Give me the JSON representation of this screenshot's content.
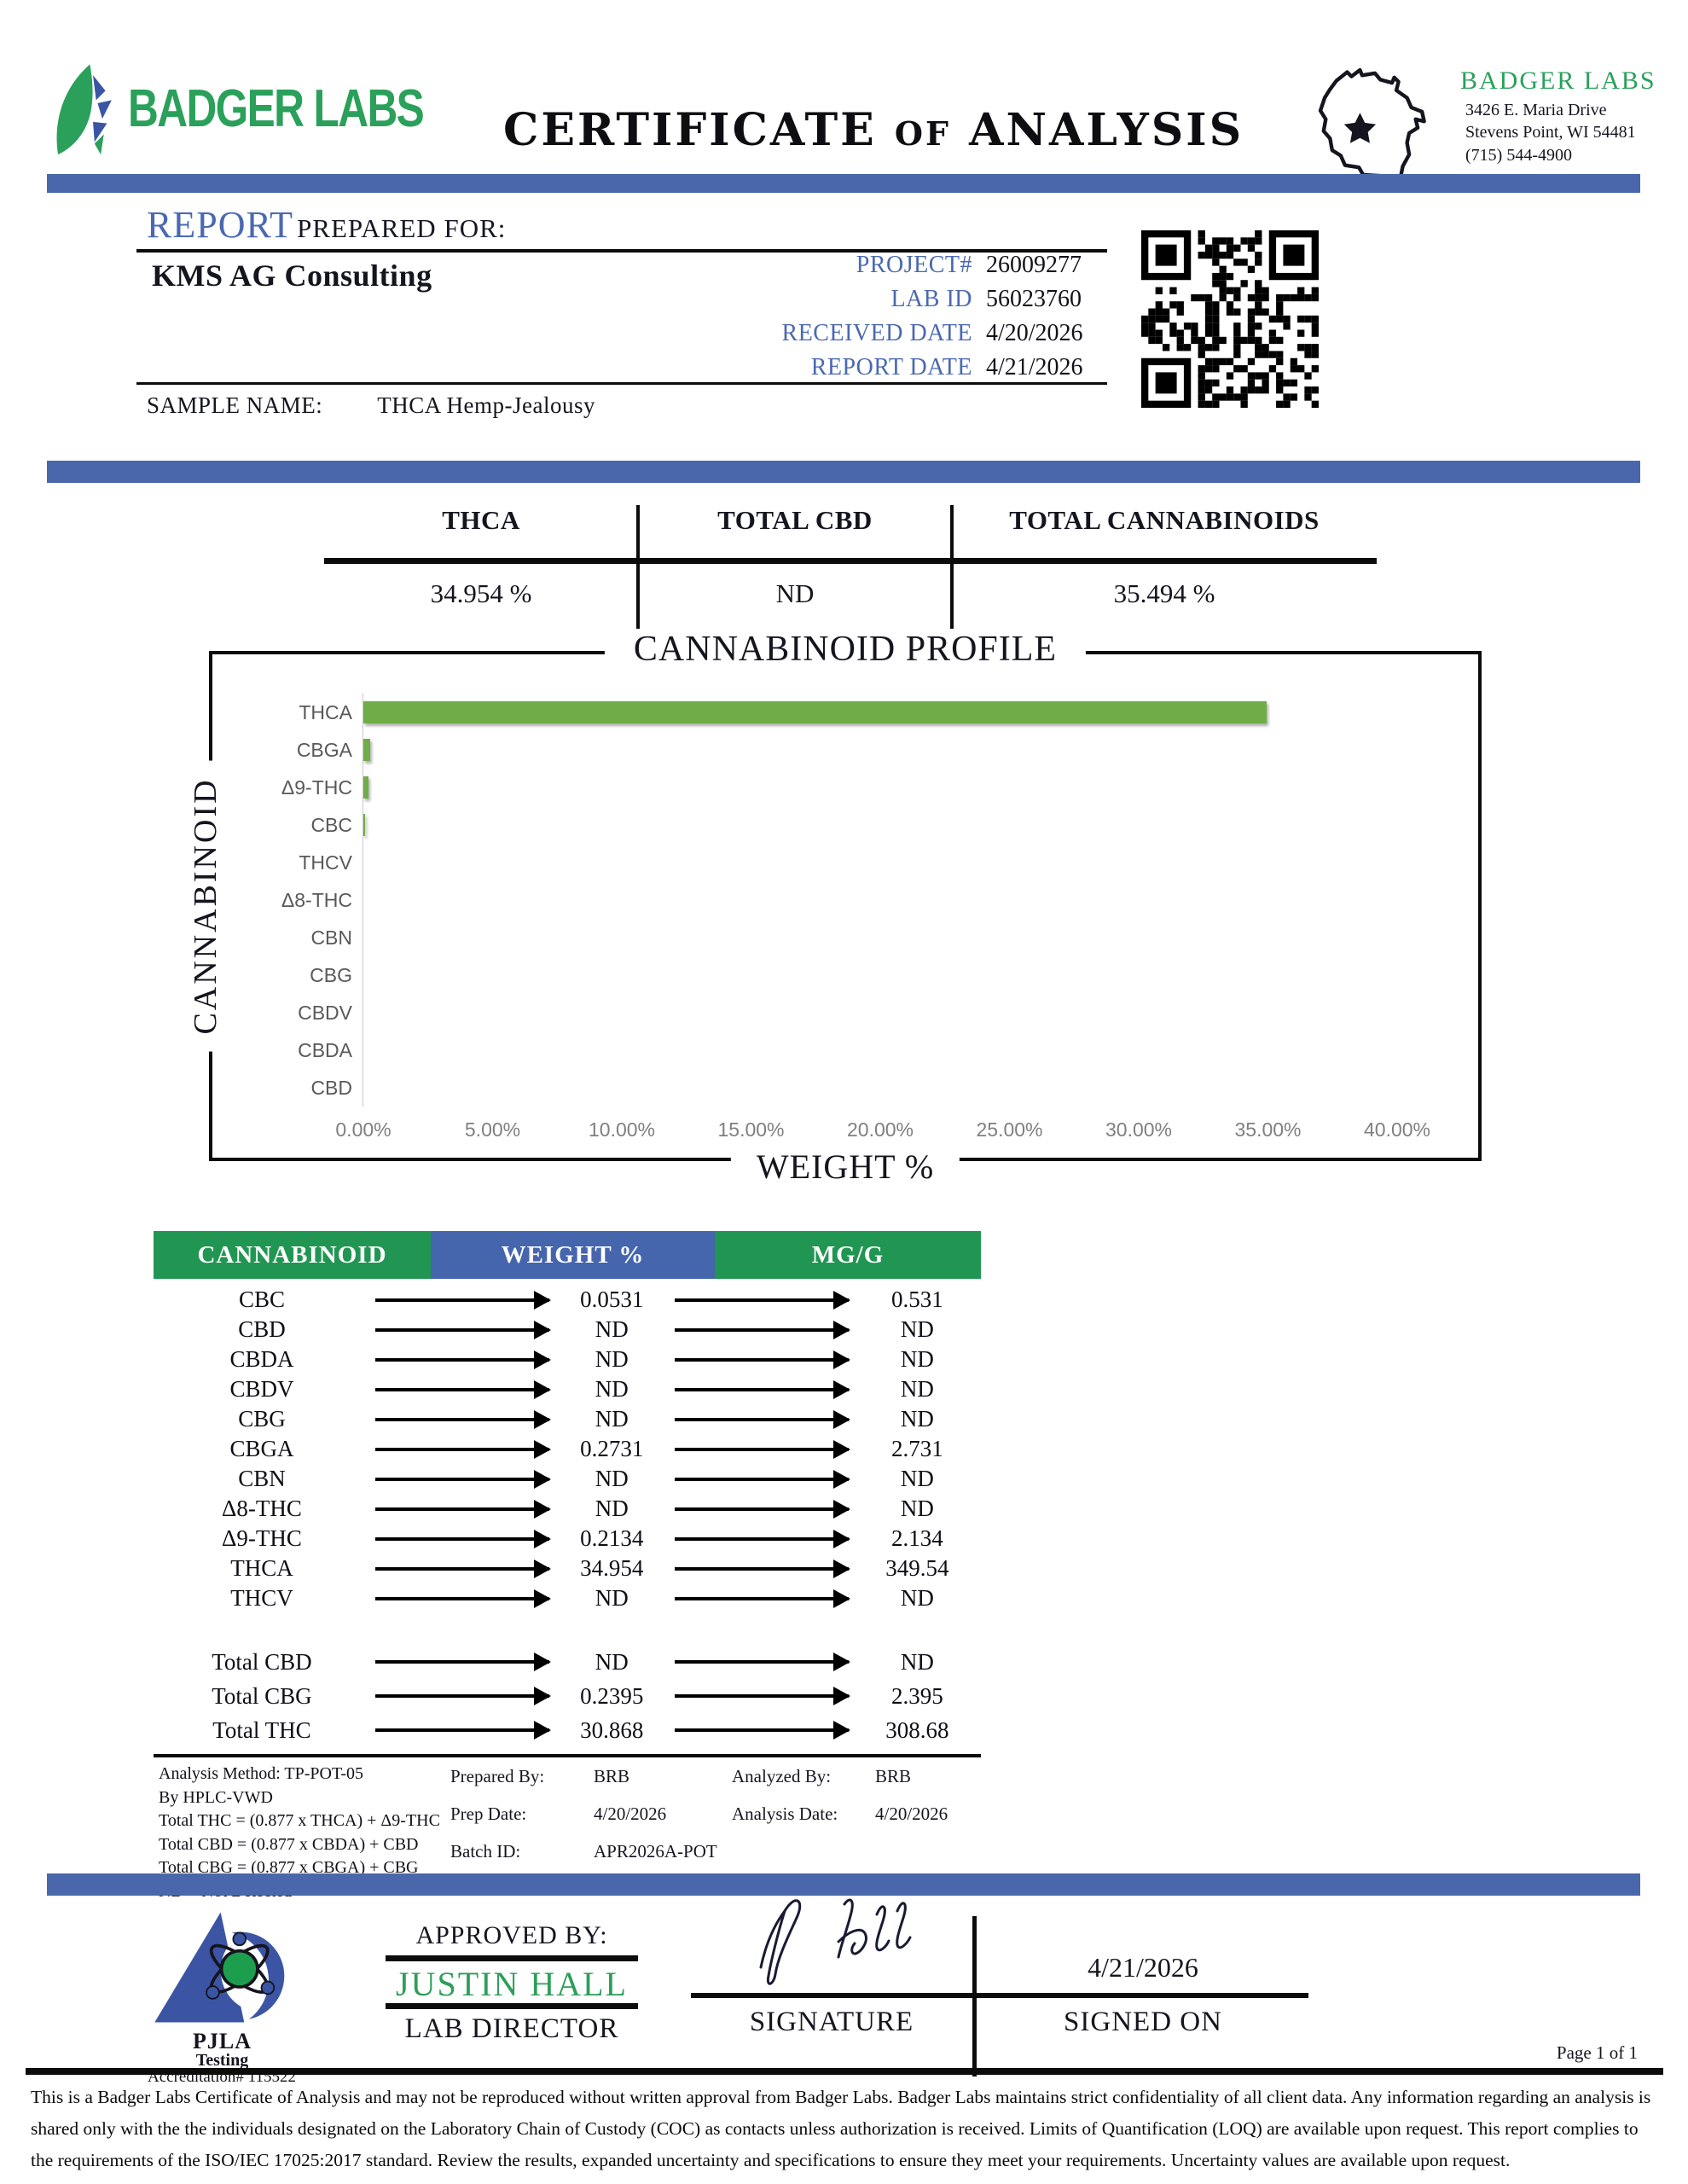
{
  "colors": {
    "accent_blue": "#4a67ab",
    "accent_green": "#2aa05a",
    "table_header_green": "#219653",
    "table_header_blue": "#4565ad",
    "bar_green": "#6fad47"
  },
  "header": {
    "brand": "BADGER LABS",
    "title_certificate": "CERTIFICATE",
    "title_of": "OF",
    "title_analysis": "ANALYSIS",
    "lab_name": "BADGER LABS",
    "address_line1": "3426 E. Maria Drive",
    "address_line2": "Stevens Point, WI 54481",
    "phone": "(715) 544-4900"
  },
  "report": {
    "heading_report": "REPORT",
    "heading_prepared": "PREPARED FOR:",
    "client": "KMS AG Consulting",
    "meta": [
      {
        "label": "PROJECT#",
        "value": "26009277"
      },
      {
        "label": "LAB ID",
        "value": "56023760"
      },
      {
        "label": "RECEIVED DATE",
        "value": "4/20/2026"
      },
      {
        "label": "REPORT DATE",
        "value": "4/21/2026"
      }
    ],
    "sample_name_label": "SAMPLE NAME:",
    "sample_name": "THCA Hemp-Jealousy"
  },
  "summary": {
    "columns": [
      {
        "label": "THCA",
        "value": "34.954 %"
      },
      {
        "label": "TOTAL CBD",
        "value": "ND"
      },
      {
        "label": "TOTAL CANNABINOIDS",
        "value": "35.494 %"
      }
    ]
  },
  "chart_data": {
    "type": "bar",
    "orientation": "horizontal",
    "title": "CANNABINOID PROFILE",
    "xlabel": "WEIGHT %",
    "ylabel": "CANNABINOID",
    "categories": [
      "THCA",
      "CBGA",
      "Δ9-THC",
      "CBC",
      "THCV",
      "Δ8-THC",
      "CBN",
      "CBG",
      "CBDV",
      "CBDA",
      "CBD"
    ],
    "values": [
      34.954,
      0.2731,
      0.2134,
      0.0531,
      0,
      0,
      0,
      0,
      0,
      0,
      0
    ],
    "xlim": [
      0,
      40
    ],
    "x_ticks": [
      "0.00%",
      "5.00%",
      "10.00%",
      "15.00%",
      "20.00%",
      "25.00%",
      "30.00%",
      "35.00%",
      "40.00%"
    ],
    "grid": false,
    "legend": "none",
    "bar_color": "#6fad47"
  },
  "table": {
    "headers": [
      "CANNABINOID",
      "WEIGHT %",
      "MG/G"
    ],
    "rows": [
      {
        "name": "CBC",
        "weight": "0.0531",
        "mgg": "0.531"
      },
      {
        "name": "CBD",
        "weight": "ND",
        "mgg": "ND"
      },
      {
        "name": "CBDA",
        "weight": "ND",
        "mgg": "ND"
      },
      {
        "name": "CBDV",
        "weight": "ND",
        "mgg": "ND"
      },
      {
        "name": "CBG",
        "weight": "ND",
        "mgg": "ND"
      },
      {
        "name": "CBGA",
        "weight": "0.2731",
        "mgg": "2.731"
      },
      {
        "name": "CBN",
        "weight": "ND",
        "mgg": "ND"
      },
      {
        "name": "Δ8-THC",
        "weight": "ND",
        "mgg": "ND"
      },
      {
        "name": "Δ9-THC",
        "weight": "0.2134",
        "mgg": "2.134"
      },
      {
        "name": "THCA",
        "weight": "34.954",
        "mgg": "349.54"
      },
      {
        "name": "THCV",
        "weight": "ND",
        "mgg": "ND"
      }
    ],
    "totals": [
      {
        "name": "Total CBD",
        "weight": "ND",
        "mgg": "ND"
      },
      {
        "name": "Total CBG",
        "weight": "0.2395",
        "mgg": "2.395"
      },
      {
        "name": "Total THC",
        "weight": "30.868",
        "mgg": "308.68"
      }
    ]
  },
  "analysis": {
    "left_lines": [
      "Analysis Method: TP-POT-05",
      "By HPLC-VWD",
      "Total THC = (0.877 x  THCA) + Δ9-THC",
      "Total CBD = (0.877 x  CBDA) + CBD",
      "Total CBG = (0.877 x  CBGA) + CBG",
      "ND = Not Detected"
    ],
    "prepared": [
      {
        "label": "Prepared By:",
        "value": "BRB"
      },
      {
        "label": "Prep Date:",
        "value": "4/20/2026"
      },
      {
        "label": "Batch ID:",
        "value": "APR2026A-POT"
      }
    ],
    "analyzed": [
      {
        "label": "Analyzed By:",
        "value": "BRB"
      },
      {
        "label": "Analysis Date:",
        "value": "4/20/2026"
      }
    ]
  },
  "approval": {
    "approved_by_label": "APPROVED BY:",
    "approver": "JUSTIN HALL",
    "approver_title": "LAB DIRECTOR",
    "signature_label": "SIGNATURE",
    "signed_on_date": "4/21/2026",
    "signed_on_label": "SIGNED ON"
  },
  "accreditation": {
    "org": "PJLA",
    "sub": "Testing",
    "number": "Accreditation# 115522"
  },
  "footer": {
    "page": "Page 1 of 1",
    "disclaimer": "This is a Badger Labs Certificate of Analysis and may not be reproduced without written approval from Badger Labs. Badger Labs maintains strict confidentiality of all client data. Any information regarding an analysis is shared only with the the individuals designated on the Laboratory Chain of Custody (COC) as contacts unless authorization is received. Limits of Quantification (LOQ) are available upon request. This report complies to the requirements of the ISO/IEC 17025:2017 standard. Review the results, expanded uncertainty and specifications to ensure they meet your requirements. Uncertainty values are available upon request."
  }
}
